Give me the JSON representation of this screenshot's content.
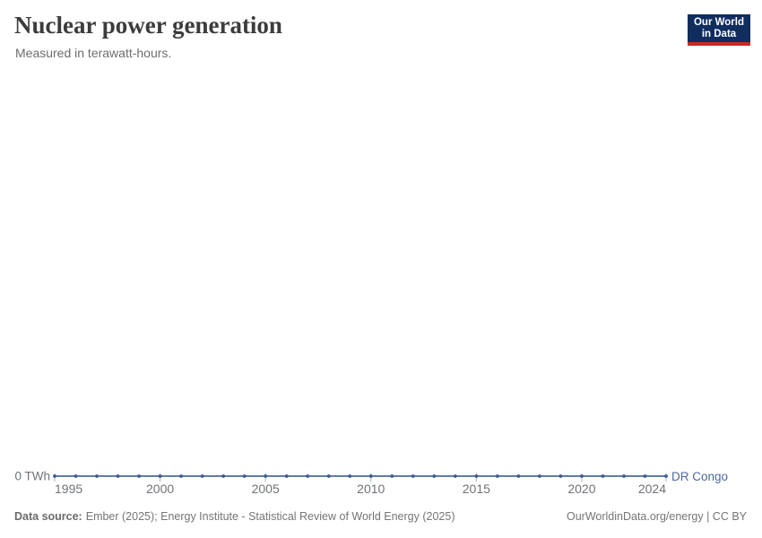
{
  "chart_data": {
    "type": "line",
    "title": "Nuclear power generation",
    "subtitle": "Measured in terawatt-hours.",
    "x": [
      1995,
      1996,
      1997,
      1998,
      1999,
      2000,
      2001,
      2002,
      2003,
      2004,
      2005,
      2006,
      2007,
      2008,
      2009,
      2010,
      2011,
      2012,
      2013,
      2014,
      2015,
      2016,
      2017,
      2018,
      2019,
      2020,
      2021,
      2022,
      2023,
      2024
    ],
    "series": [
      {
        "name": "DR Congo",
        "values": [
          0,
          0,
          0,
          0,
          0,
          0,
          0,
          0,
          0,
          0,
          0,
          0,
          0,
          0,
          0,
          0,
          0,
          0,
          0,
          0,
          0,
          0,
          0,
          0,
          0,
          0,
          0,
          0,
          0,
          0
        ]
      }
    ],
    "x_ticks": [
      1995,
      2000,
      2005,
      2010,
      2015,
      2020,
      2024
    ],
    "y_tick_labels": [
      "0 TWh"
    ],
    "y_unit": "TWh",
    "xlim": [
      1995,
      2024
    ],
    "ylim": [
      0,
      0
    ],
    "grid": false,
    "legend_position": "end-of-line",
    "marker": "circle"
  },
  "header": {
    "logo": {
      "line1": "Our World",
      "line2": "in Data"
    }
  },
  "footer": {
    "source_label": "Data source:",
    "source_text": "Ember (2025); Energy Institute - Statistical Review of World Energy (2025)",
    "attribution": "OurWorldinData.org/energy | CC BY"
  },
  "colors": {
    "line": "#4c6a9c",
    "marker": "#3a5a94",
    "tick": "#9fb0c8",
    "axis_text": "#6f7378",
    "entity_label": "#4c6a9c",
    "title_text": "#3c3c3c",
    "subtitle_text": "#6d6d6d",
    "footer_text": "#757575",
    "logo_bg": "#102d5e",
    "logo_accent": "#d0281e",
    "background": "#ffffff"
  }
}
